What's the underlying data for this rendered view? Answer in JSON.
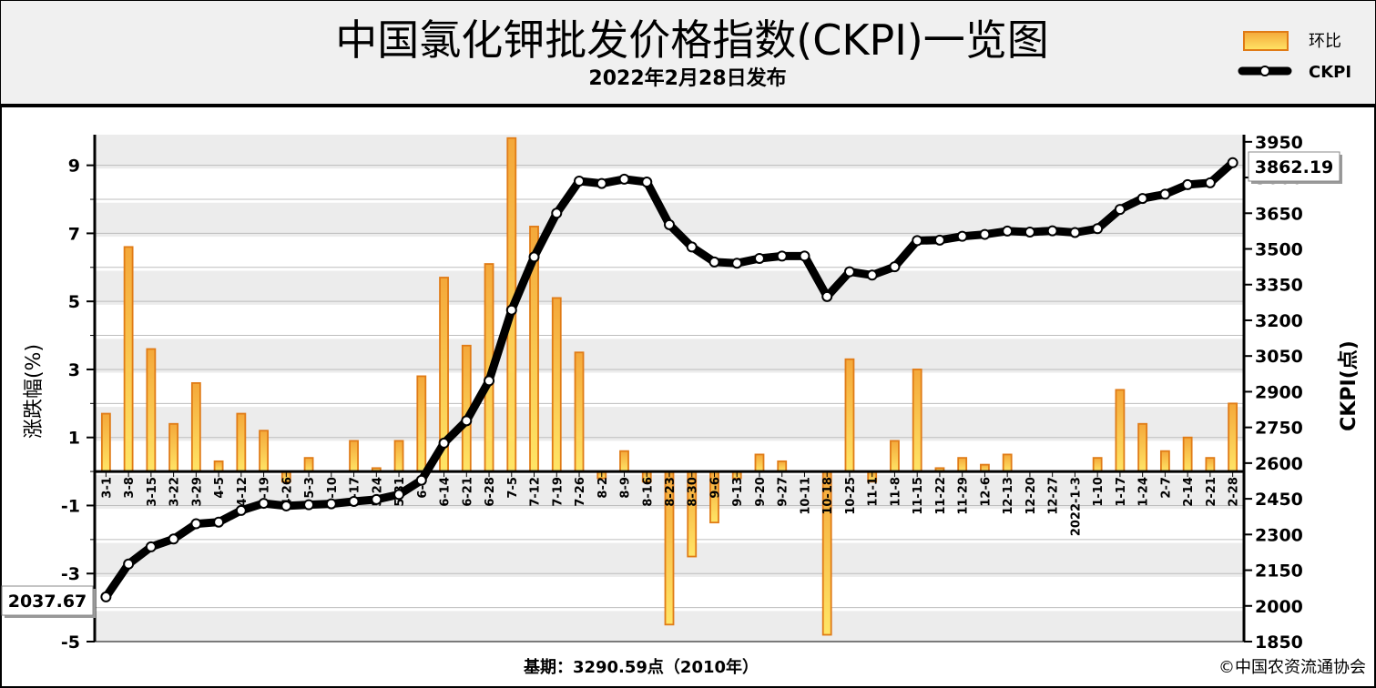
{
  "header": {
    "title": "中国氯化钾批发价格指数(CKPI)一览图",
    "subtitle": "2022年2月28日发布"
  },
  "legend": {
    "bar_label": "环比",
    "line_label": "CKPI"
  },
  "footer": {
    "base": "基期：3290.59点（2010年）",
    "copyright": "©中国农资流通协会"
  },
  "colors": {
    "bar_fill_top": "#f4a83a",
    "bar_fill_bottom": "#ffe566",
    "bar_stroke": "#e07b16",
    "line": "#000000",
    "marker_fill": "#ffffff",
    "plot_band": "#ececec"
  },
  "chart_data": {
    "type": "bar",
    "categories": [
      "3-1",
      "3-8",
      "3-15",
      "3-22",
      "3-29",
      "4-5",
      "4-12",
      "4-19",
      "4-26",
      "5-3",
      "5-10",
      "5-17",
      "5-24",
      "5-31",
      "6-7",
      "6-14",
      "6-21",
      "6-28",
      "7-5",
      "7-12",
      "7-19",
      "7-26",
      "8-2",
      "8-9",
      "8-16",
      "8-23",
      "8-30",
      "9-6",
      "9-13",
      "9-20",
      "9-27",
      "10-11",
      "10-18",
      "10-25",
      "11-1",
      "11-8",
      "11-15",
      "11-22",
      "11-29",
      "12-6",
      "12-13",
      "12-20",
      "12-27",
      "2022-1-3",
      "1-10",
      "1-17",
      "1-24",
      "2-7",
      "2-14",
      "2-21",
      "2-28"
    ],
    "series": [
      {
        "name": "环比",
        "type": "bar",
        "axis": "left",
        "values": [
          1.7,
          6.6,
          3.6,
          1.4,
          2.6,
          0.3,
          1.7,
          1.2,
          -0.3,
          0.4,
          0.0,
          0.9,
          0.1,
          0.9,
          2.8,
          5.7,
          3.7,
          6.1,
          9.8,
          7.2,
          5.1,
          3.5,
          -0.2,
          0.6,
          -0.3,
          -4.5,
          -2.5,
          -1.5,
          -0.2,
          0.5,
          0.3,
          0.0,
          -4.8,
          3.3,
          -0.3,
          0.9,
          3.0,
          0.1,
          0.4,
          0.2,
          0.5,
          0.0,
          0.0,
          0.0,
          0.4,
          2.4,
          1.4,
          0.6,
          1.0,
          0.4,
          2.0
        ]
      },
      {
        "name": "CKPI",
        "type": "line",
        "axis": "right",
        "values": [
          2037.67,
          2176,
          2248,
          2281,
          2345,
          2352,
          2401,
          2431,
          2420,
          2425,
          2429,
          2439,
          2447,
          2468,
          2528,
          2684,
          2778,
          2946,
          3243,
          3466,
          3650,
          3785,
          3775,
          3793,
          3781,
          3602,
          3508,
          3445,
          3440,
          3460,
          3470,
          3470,
          3300,
          3404,
          3390,
          3425,
          3535,
          3537,
          3553,
          3561,
          3575,
          3571,
          3576,
          3569,
          3585,
          3666,
          3712,
          3730,
          3770,
          3778,
          3862.19
        ]
      }
    ],
    "y_left": {
      "label": "涨跌幅(%)",
      "min": -5,
      "max": 9.9,
      "ticks": [
        9,
        7,
        5,
        3,
        1,
        -1,
        -3,
        -5
      ]
    },
    "y_right": {
      "label": "CKPI(点)",
      "min": 1850,
      "max": 3980,
      "ticks": [
        3950,
        3800,
        3650,
        3500,
        3350,
        3200,
        3050,
        2900,
        2750,
        2600,
        2450,
        2300,
        2150,
        2000,
        1850
      ]
    },
    "callouts": {
      "first": "2037.67",
      "last": "3862.19"
    },
    "grid": true,
    "legend_position": "top-right"
  }
}
